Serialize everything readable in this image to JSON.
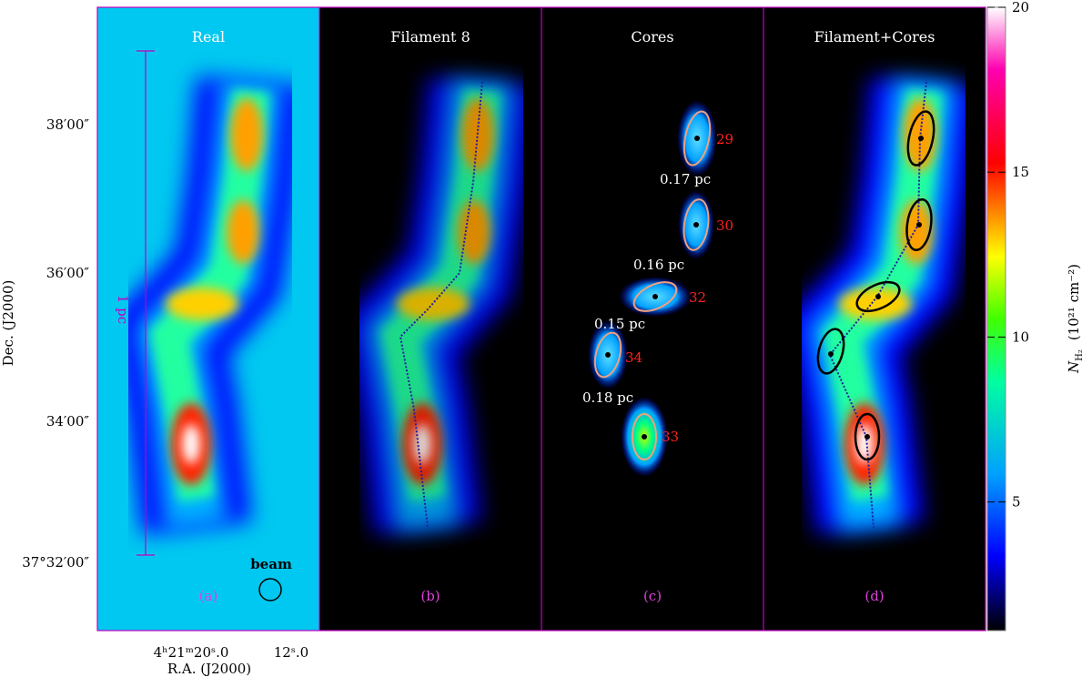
{
  "panels": [
    {
      "title": "Real",
      "label": "(a)"
    },
    {
      "title": "Filament 8",
      "label": "(b)"
    },
    {
      "title": "Cores",
      "label": "(c)"
    },
    {
      "title": "Filament+Cores",
      "label": "(d)"
    }
  ],
  "scale_bar": "1 pc",
  "beam": "beam",
  "cores": [
    {
      "id": "29",
      "size": "0.17 pc"
    },
    {
      "id": "30",
      "size": "0.16 pc"
    },
    {
      "id": "32",
      "size": "0.15 pc"
    },
    {
      "id": "34",
      "size": "0.18 pc"
    },
    {
      "id": "33"
    }
  ],
  "x_axis": {
    "label": "R.A. (J2000)",
    "ticks": [
      "4ʰ21ᵐ20ˢ.0",
      "12ˢ.0"
    ]
  },
  "y_axis": {
    "label": "Dec. (J2000)",
    "ticks": [
      "38′00″",
      "36′00″",
      "34′00″",
      "37°32′00″"
    ]
  },
  "colorbar": {
    "symbol": "N",
    "subscript": "H₂",
    "unit": "(10²¹ cm⁻²)",
    "lim": [
      1.1,
      20
    ],
    "ticks": [
      5,
      10,
      15,
      20
    ]
  }
}
